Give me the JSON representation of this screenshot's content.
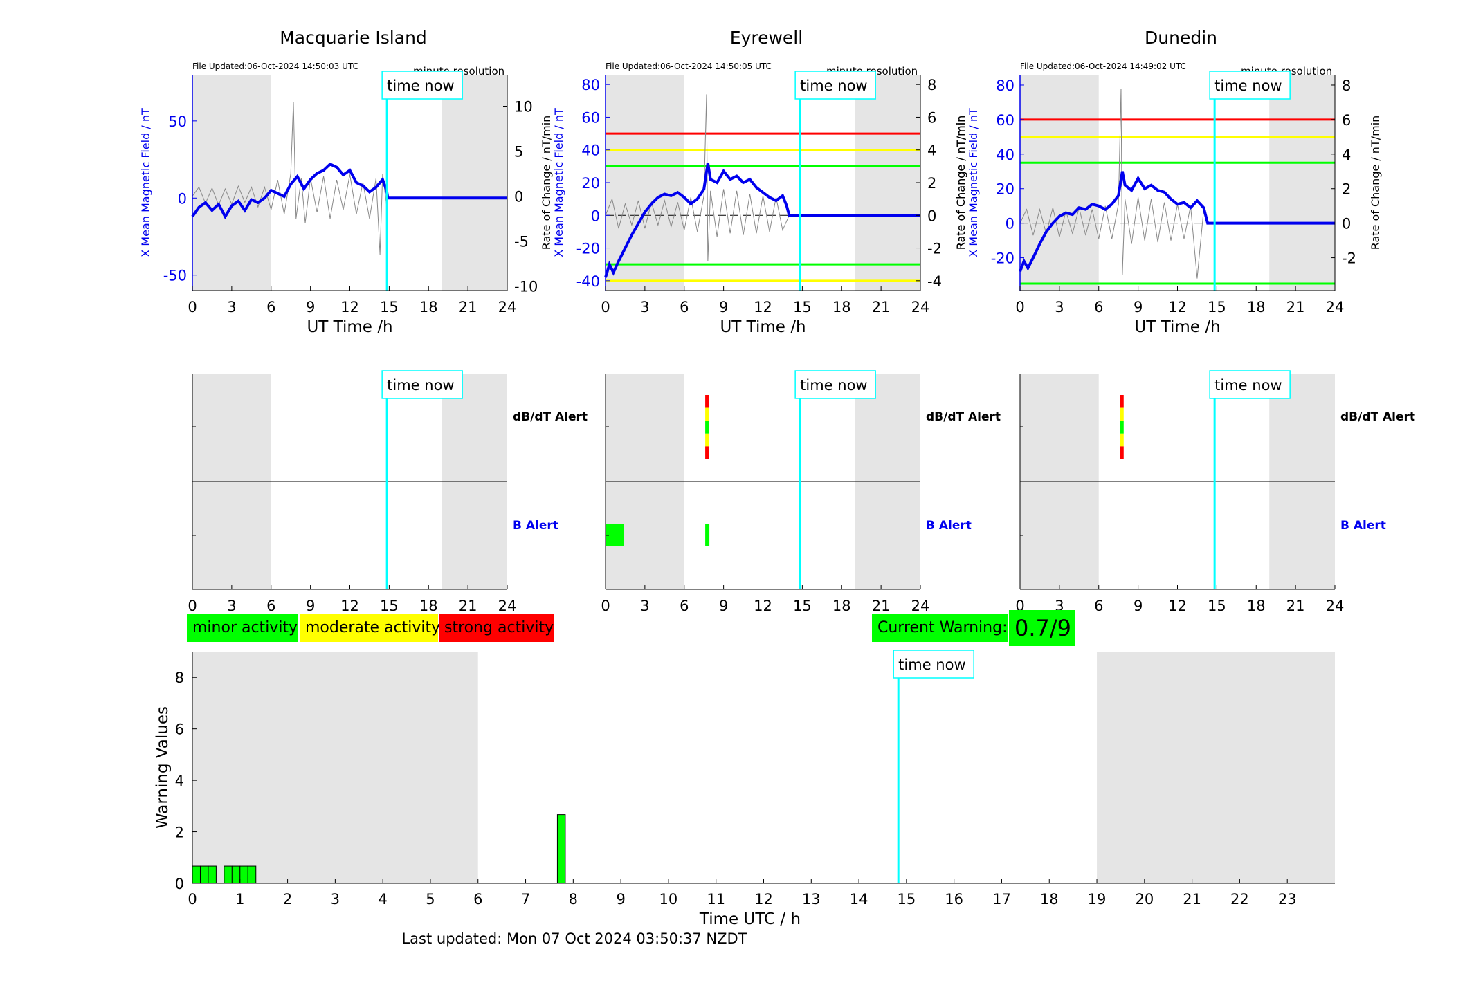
{
  "stations": [
    {
      "name": "Macquarie Island",
      "file_updated": "File Updated:06-Oct-2024 14:50:03 UTC",
      "resolution": "minute resolution",
      "ylabel_left": "X Mean Magnetic Field / nT",
      "ylabel_right": "",
      "xlabel": "UT Time /h",
      "left_ylim": [
        -60,
        80
      ],
      "left_ticks": [
        -50,
        0,
        50
      ],
      "right_ylim": [
        -10.5,
        13.5
      ],
      "right_ticks": [
        -10,
        -5,
        0,
        5,
        10
      ],
      "thresholds": [],
      "field_trace": [
        [
          0,
          -12
        ],
        [
          0.5,
          -6
        ],
        [
          1,
          -3
        ],
        [
          1.5,
          -8
        ],
        [
          2,
          -4
        ],
        [
          2.5,
          -12
        ],
        [
          3,
          -5
        ],
        [
          3.5,
          -2
        ],
        [
          4,
          -8
        ],
        [
          4.5,
          -1
        ],
        [
          5,
          -3
        ],
        [
          5.5,
          0
        ],
        [
          6,
          5
        ],
        [
          6.5,
          3
        ],
        [
          7,
          1
        ],
        [
          7.5,
          9
        ],
        [
          8,
          14
        ],
        [
          8.5,
          6
        ],
        [
          9,
          12
        ],
        [
          9.5,
          16
        ],
        [
          10,
          18
        ],
        [
          10.5,
          22
        ],
        [
          11,
          20
        ],
        [
          11.5,
          15
        ],
        [
          12,
          18
        ],
        [
          12.5,
          10
        ],
        [
          13,
          8
        ],
        [
          13.5,
          4
        ],
        [
          14,
          7
        ],
        [
          14.5,
          12
        ],
        [
          14.8,
          5
        ],
        [
          14.9,
          0
        ],
        [
          24,
          0
        ]
      ],
      "roc_trace": [
        [
          0,
          0
        ],
        [
          0.5,
          1
        ],
        [
          1,
          -0.8
        ],
        [
          1.5,
          0.9
        ],
        [
          2,
          -1
        ],
        [
          2.5,
          0.8
        ],
        [
          3,
          -0.9
        ],
        [
          3.5,
          1.1
        ],
        [
          4,
          -0.7
        ],
        [
          4.5,
          1
        ],
        [
          5,
          -1.2
        ],
        [
          5.5,
          1
        ],
        [
          6,
          -1.5
        ],
        [
          6.5,
          1.8
        ],
        [
          7,
          -2
        ],
        [
          7.5,
          2.5
        ],
        [
          7.7,
          10.5
        ],
        [
          7.9,
          -2.5
        ],
        [
          8.3,
          2
        ],
        [
          8.6,
          -3
        ],
        [
          9,
          2
        ],
        [
          9.5,
          -1.8
        ],
        [
          10,
          2.2
        ],
        [
          10.5,
          -2.5
        ],
        [
          11,
          1.8
        ],
        [
          11.5,
          -1.5
        ],
        [
          12,
          2.4
        ],
        [
          12.5,
          -2
        ],
        [
          13,
          1.5
        ],
        [
          13.5,
          -2.5
        ],
        [
          14,
          2
        ],
        [
          14.3,
          -6.5
        ],
        [
          14.5,
          2.5
        ],
        [
          14.8,
          -1
        ],
        [
          14.9,
          0
        ]
      ],
      "bar_timeline": {
        "dbdt": [],
        "b": []
      },
      "alert_labels": {
        "dbdt": "dB/dT Alert",
        "b": "B Alert"
      }
    },
    {
      "name": "Eyrewell",
      "file_updated": "File Updated:06-Oct-2024 14:50:05 UTC",
      "resolution": "minute resolution",
      "ylabel_left": "X Mean Magnetic Field / nT",
      "ylabel_right": "Rate of Change / nT/min",
      "xlabel": "UT Time /h",
      "left_ylim": [
        -46,
        86
      ],
      "left_ticks": [
        -40,
        -20,
        0,
        20,
        40,
        60,
        80
      ],
      "right_ylim": [
        -4.6,
        8.6
      ],
      "right_ticks": [
        -4,
        -2,
        0,
        2,
        4,
        6,
        8
      ],
      "thresholds": [
        {
          "value": 50,
          "color": "#ff0000"
        },
        {
          "value": 40,
          "color": "#ffff00"
        },
        {
          "value": 30,
          "color": "#00ff00"
        },
        {
          "value": -30,
          "color": "#00ff00"
        },
        {
          "value": -40,
          "color": "#ffff00"
        }
      ],
      "field_trace": [
        [
          0,
          -38
        ],
        [
          0.3,
          -30
        ],
        [
          0.6,
          -35
        ],
        [
          1,
          -28
        ],
        [
          1.5,
          -20
        ],
        [
          2,
          -12
        ],
        [
          2.5,
          -5
        ],
        [
          3,
          2
        ],
        [
          3.5,
          7
        ],
        [
          4,
          11
        ],
        [
          4.5,
          13
        ],
        [
          5,
          12
        ],
        [
          5.5,
          14
        ],
        [
          6,
          11
        ],
        [
          6.5,
          7
        ],
        [
          7,
          10
        ],
        [
          7.5,
          16
        ],
        [
          7.8,
          32
        ],
        [
          8,
          22
        ],
        [
          8.5,
          20
        ],
        [
          9,
          27
        ],
        [
          9.5,
          22
        ],
        [
          10,
          24
        ],
        [
          10.5,
          20
        ],
        [
          11,
          22
        ],
        [
          11.5,
          17
        ],
        [
          12,
          14
        ],
        [
          12.5,
          11
        ],
        [
          13,
          9
        ],
        [
          13.5,
          12
        ],
        [
          13.8,
          6
        ],
        [
          14,
          0
        ],
        [
          24,
          0
        ]
      ],
      "roc_trace": [
        [
          0,
          0
        ],
        [
          0.5,
          1
        ],
        [
          1,
          -0.8
        ],
        [
          1.5,
          0.7
        ],
        [
          2,
          -0.6
        ],
        [
          2.5,
          0.9
        ],
        [
          3,
          -0.8
        ],
        [
          3.5,
          0.8
        ],
        [
          4,
          -0.6
        ],
        [
          4.5,
          0.9
        ],
        [
          5,
          -0.7
        ],
        [
          5.5,
          0.8
        ],
        [
          6,
          -0.9
        ],
        [
          6.5,
          1.1
        ],
        [
          7,
          -1
        ],
        [
          7.5,
          1.2
        ],
        [
          7.7,
          7.4
        ],
        [
          7.8,
          -2.8
        ],
        [
          8,
          1.5
        ],
        [
          8.5,
          -1.3
        ],
        [
          9,
          1.6
        ],
        [
          9.5,
          -1.1
        ],
        [
          10,
          1.5
        ],
        [
          10.5,
          -1.2
        ],
        [
          11,
          1.3
        ],
        [
          11.5,
          -1.1
        ],
        [
          12,
          1.2
        ],
        [
          12.5,
          -1
        ],
        [
          13,
          1.1
        ],
        [
          13.5,
          -0.9
        ],
        [
          14,
          0
        ]
      ],
      "bar_timeline": {
        "dbdt": [
          {
            "start": 7.6,
            "end": 7.9,
            "levels": [
              "red",
              "yellow",
              "green",
              "yellow",
              "red"
            ]
          }
        ],
        "b": [
          {
            "start": 0,
            "end": 1.4,
            "color": "green"
          },
          {
            "start": 7.6,
            "end": 7.9,
            "color": "green"
          }
        ]
      },
      "alert_labels": {
        "dbdt": "dB/dT Alert",
        "b": "B Alert"
      }
    },
    {
      "name": "Dunedin",
      "file_updated": "File Updated:06-Oct-2024 14:49:02 UTC",
      "resolution": "minute resolution",
      "ylabel_left": "X Mean Magnetic Field / nT",
      "ylabel_right": "Rate of Change / nT/min",
      "xlabel": "UT Time /h",
      "left_ylim": [
        -39,
        86
      ],
      "left_ticks": [
        -20,
        0,
        20,
        40,
        60,
        80
      ],
      "right_ylim": [
        -3.9,
        8.6
      ],
      "right_ticks": [
        -2,
        0,
        2,
        4,
        6,
        8
      ],
      "thresholds": [
        {
          "value": 60,
          "color": "#ff0000"
        },
        {
          "value": 50,
          "color": "#ffff00"
        },
        {
          "value": 35,
          "color": "#00ff00"
        },
        {
          "value": -35,
          "color": "#00ff00"
        }
      ],
      "field_trace": [
        [
          0,
          -28
        ],
        [
          0.3,
          -22
        ],
        [
          0.6,
          -26
        ],
        [
          1,
          -20
        ],
        [
          1.5,
          -12
        ],
        [
          2,
          -5
        ],
        [
          2.5,
          0
        ],
        [
          3,
          4
        ],
        [
          3.5,
          6
        ],
        [
          4,
          5
        ],
        [
          4.5,
          9
        ],
        [
          5,
          8
        ],
        [
          5.5,
          11
        ],
        [
          6,
          10
        ],
        [
          6.5,
          8
        ],
        [
          7,
          11
        ],
        [
          7.5,
          16
        ],
        [
          7.8,
          30
        ],
        [
          8,
          22
        ],
        [
          8.5,
          19
        ],
        [
          9,
          26
        ],
        [
          9.5,
          20
        ],
        [
          10,
          22
        ],
        [
          10.5,
          19
        ],
        [
          11,
          18
        ],
        [
          11.5,
          14
        ],
        [
          12,
          11
        ],
        [
          12.5,
          12
        ],
        [
          13,
          9
        ],
        [
          13.5,
          13
        ],
        [
          14,
          9
        ],
        [
          14.3,
          0
        ],
        [
          24,
          0
        ]
      ],
      "roc_trace": [
        [
          0,
          0
        ],
        [
          0.5,
          0.8
        ],
        [
          1,
          -0.7
        ],
        [
          1.5,
          0.8
        ],
        [
          2,
          -0.6
        ],
        [
          2.5,
          0.9
        ],
        [
          3,
          -0.8
        ],
        [
          3.5,
          0.7
        ],
        [
          4,
          -0.6
        ],
        [
          4.5,
          0.9
        ],
        [
          5,
          -0.7
        ],
        [
          5.5,
          0.8
        ],
        [
          6,
          -0.9
        ],
        [
          6.5,
          1
        ],
        [
          7,
          -0.9
        ],
        [
          7.5,
          1.1
        ],
        [
          7.7,
          7.8
        ],
        [
          7.8,
          -3
        ],
        [
          8,
          1.4
        ],
        [
          8.5,
          -1.2
        ],
        [
          9,
          1.5
        ],
        [
          9.5,
          -1
        ],
        [
          10,
          1.4
        ],
        [
          10.5,
          -1.1
        ],
        [
          11,
          1.2
        ],
        [
          11.5,
          -1
        ],
        [
          12,
          1.1
        ],
        [
          12.5,
          -0.9
        ],
        [
          13,
          1
        ],
        [
          13.5,
          -3.2
        ],
        [
          14,
          0.8
        ],
        [
          14.3,
          0
        ]
      ],
      "bar_timeline": {
        "dbdt": [
          {
            "start": 7.6,
            "end": 7.9,
            "levels": [
              "red",
              "yellow",
              "green",
              "yellow",
              "red"
            ]
          }
        ],
        "b": []
      },
      "alert_labels": {
        "dbdt": "dB/dT Alert",
        "b": "B Alert"
      }
    }
  ],
  "shared": {
    "time_now_label": "time now",
    "time_now": 14.83,
    "x_ticks": [
      0,
      3,
      6,
      9,
      12,
      15,
      18,
      21,
      24
    ],
    "night_shading": [
      [
        0,
        6
      ],
      [
        19,
        24
      ]
    ]
  },
  "legend": {
    "minor": "minor activity",
    "moderate": "moderate activity",
    "strong": "strong activity",
    "colors": {
      "minor": "#00ff00",
      "moderate": "#ffff00",
      "strong": "#ff0000"
    }
  },
  "current_warning": {
    "label": "Current Warning:",
    "value": "0.7/9"
  },
  "chart_data": {
    "type": "bar",
    "xlabel": "Time UTC / h",
    "ylabel": "Warning Values",
    "xlim": [
      0,
      24
    ],
    "ylim": [
      0,
      9
    ],
    "x_ticks": [
      0,
      1,
      2,
      3,
      4,
      5,
      6,
      7,
      8,
      9,
      10,
      11,
      12,
      13,
      14,
      15,
      16,
      17,
      18,
      19,
      20,
      21,
      22,
      23
    ],
    "y_ticks": [
      0,
      2,
      4,
      6,
      8
    ],
    "night_shading": [
      [
        0,
        6
      ],
      [
        19,
        24
      ]
    ],
    "bars": [
      {
        "x": 0.0,
        "value": 0.67
      },
      {
        "x": 0.167,
        "value": 0.67
      },
      {
        "x": 0.333,
        "value": 0.67
      },
      {
        "x": 0.667,
        "value": 0.67
      },
      {
        "x": 0.833,
        "value": 0.67
      },
      {
        "x": 1.0,
        "value": 0.67
      },
      {
        "x": 1.167,
        "value": 0.67
      },
      {
        "x": 7.667,
        "value": 2.67
      }
    ],
    "bar_width_h": 0.167,
    "bar_color": "#00ff00"
  },
  "footer": "Last updated: Mon 07 Oct 2024 03:50:37 NZDT"
}
